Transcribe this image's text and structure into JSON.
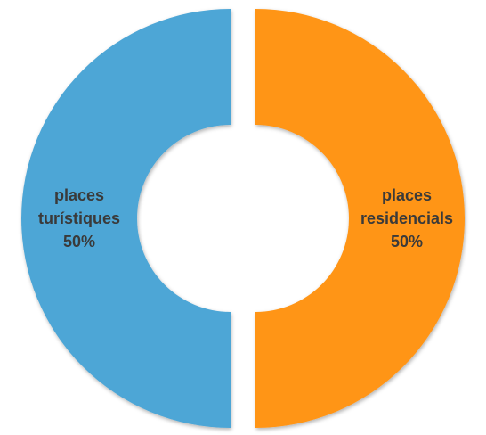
{
  "chart_data": {
    "type": "donut",
    "categories": [
      "places turístiques",
      "places residencials"
    ],
    "values": [
      50,
      50
    ],
    "value_labels": [
      "50%",
      "50%"
    ],
    "colors": [
      "#4ea6d6",
      "#ff9518"
    ]
  }
}
